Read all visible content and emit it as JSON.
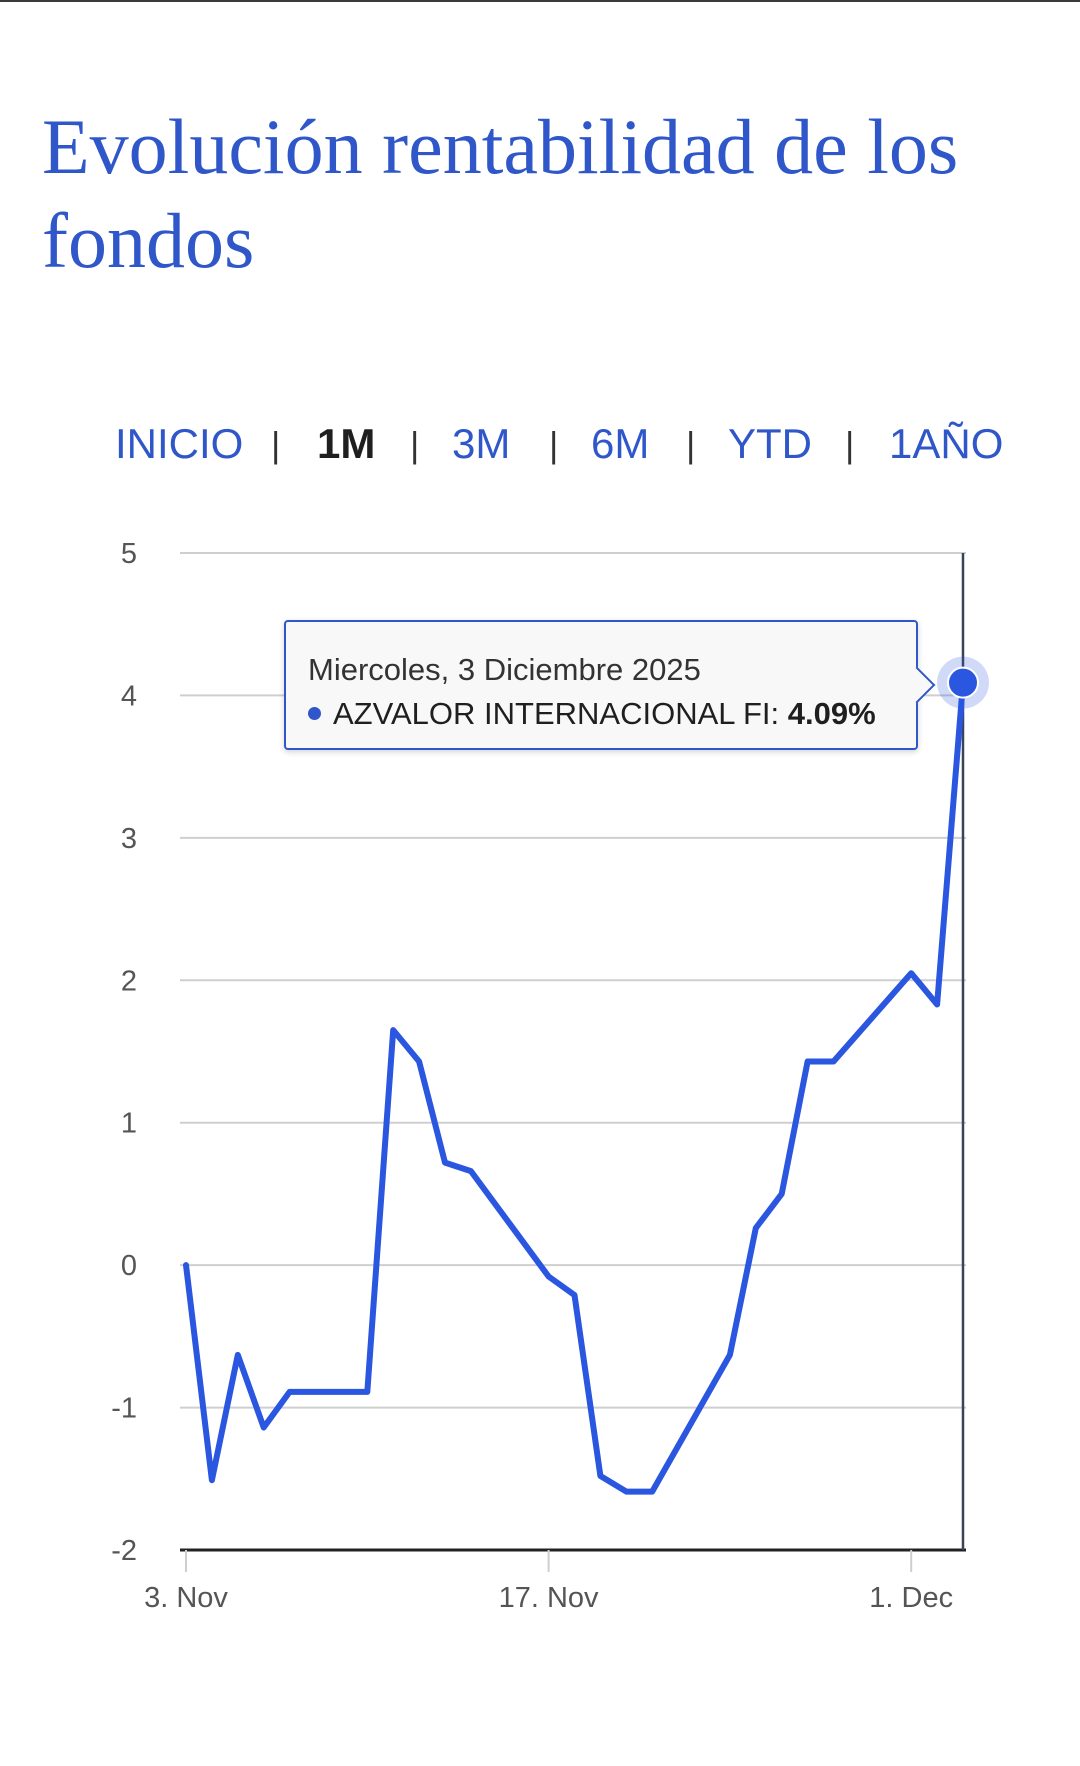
{
  "page": {
    "title": "Evolución rentabilidad de los fondos"
  },
  "range_tabs": [
    {
      "label": "INICIO",
      "active": false
    },
    {
      "label": "1M",
      "active": true
    },
    {
      "label": "3M",
      "active": false
    },
    {
      "label": "6M",
      "active": false
    },
    {
      "label": "YTD",
      "active": false
    },
    {
      "label": "1AÑO",
      "active": false
    }
  ],
  "colors": {
    "accent": "#2f57c9",
    "series": "#2a56e0"
  },
  "tooltip": {
    "date": "Miercoles, 3 Diciembre 2025",
    "series_label": "AZVALOR INTERNACIONAL FI:",
    "value": "4.09%"
  },
  "chart_data": {
    "type": "line",
    "title": "",
    "xlabel": "",
    "ylabel": "",
    "ylim": [
      -2,
      5
    ],
    "yticks": [
      "5",
      "4",
      "3",
      "2",
      "1",
      "0",
      "-1",
      "-2"
    ],
    "xticks": [
      "3. Nov",
      "17. Nov",
      "1. Dec"
    ],
    "grid": true,
    "series": [
      {
        "name": "AZVALOR INTERNACIONAL FI",
        "x": [
          "2025-11-03",
          "2025-11-04",
          "2025-11-05",
          "2025-11-06",
          "2025-11-07",
          "2025-11-10",
          "2025-11-11",
          "2025-11-12",
          "2025-11-13",
          "2025-11-14",
          "2025-11-17",
          "2025-11-18",
          "2025-11-19",
          "2025-11-20",
          "2025-11-21",
          "2025-11-24",
          "2025-11-25",
          "2025-11-26",
          "2025-11-27",
          "2025-11-28",
          "2025-12-01",
          "2025-12-02",
          "2025-12-03"
        ],
        "values": [
          0.0,
          -1.51,
          -0.63,
          -1.14,
          -0.89,
          -0.89,
          1.65,
          1.43,
          0.72,
          0.66,
          -0.08,
          -0.21,
          -1.48,
          -1.59,
          -1.59,
          -0.63,
          0.26,
          0.5,
          1.43,
          1.43,
          2.05,
          1.83,
          4.09
        ]
      }
    ]
  }
}
